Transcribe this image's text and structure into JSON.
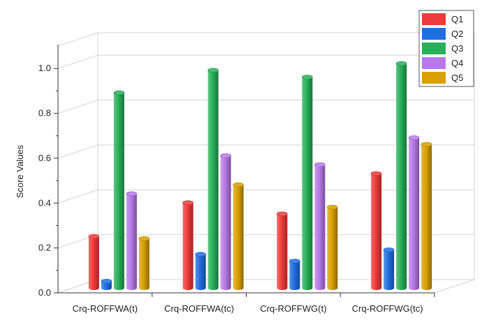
{
  "chart_data": {
    "type": "bar",
    "style": "3d-columns",
    "title": "",
    "xlabel": "",
    "ylabel": "Score Values",
    "ylim": [
      0.0,
      1.1
    ],
    "yticks": [
      "0.0",
      "0.2",
      "0.4",
      "0.6",
      "0.8",
      "1.0"
    ],
    "grid": true,
    "legend_position": "top-right",
    "categories": [
      "Crq-ROFFWA(t)",
      "Crq-ROFFWA(tc)",
      "Crq-ROFFWG(t)",
      "Crq-ROFFWG(tc)"
    ],
    "series": [
      {
        "name": "Q1",
        "color": "#ef3b3b",
        "values": [
          0.23,
          0.38,
          0.33,
          0.51
        ]
      },
      {
        "name": "Q2",
        "color": "#1f6fe0",
        "values": [
          0.03,
          0.15,
          0.12,
          0.17
        ]
      },
      {
        "name": "Q3",
        "color": "#27b05a",
        "values": [
          0.87,
          0.97,
          0.94,
          1.0
        ]
      },
      {
        "name": "Q4",
        "color": "#b879e8",
        "values": [
          0.42,
          0.59,
          0.55,
          0.67
        ]
      },
      {
        "name": "Q5",
        "color": "#d9a000",
        "values": [
          0.22,
          0.46,
          0.36,
          0.64
        ]
      }
    ]
  }
}
